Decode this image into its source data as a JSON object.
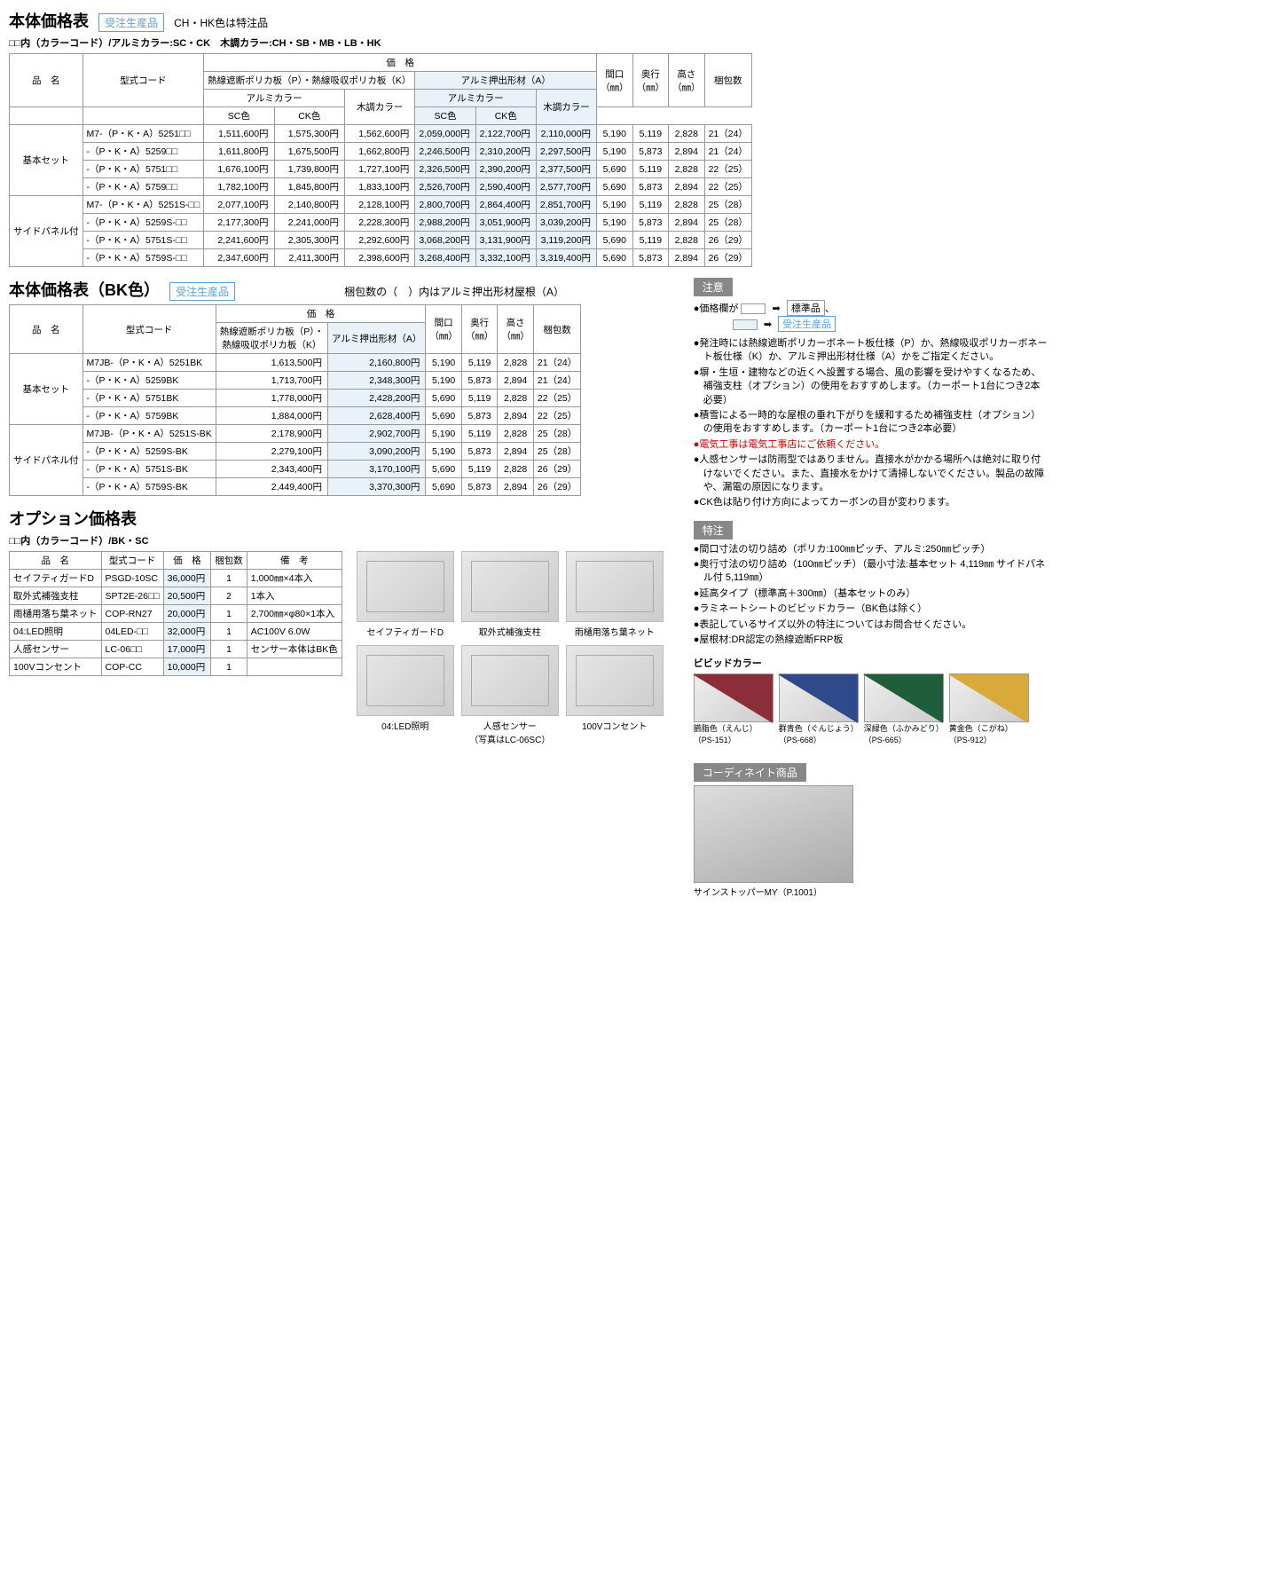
{
  "titles": {
    "main": "本体価格表",
    "badge": "受注生産品",
    "chhk": "CH・HK色は特注品",
    "colorcode": "□□内（カラーコード）/アルミカラー:SC・CK　木調カラー:CH・SB・MB・LB・HK",
    "bk": "本体価格表（BK色）",
    "bk_note": "梱包数の（　）内はアルミ押出形材屋根（A）",
    "option": "オプション価格表",
    "option_color": "□□内（カラーコード）/BK・SC"
  },
  "headers": {
    "name": "品　名",
    "model": "型式コード",
    "price": "価　格",
    "polyca": "熱線遮断ポリカ板（P）・熱線吸収ポリカ板（K）",
    "alumi_ext": "アルミ押出形材（A）",
    "alumi_color": "アルミカラー",
    "wood_color": "木調カラー",
    "sc": "SC色",
    "ck": "CK色",
    "width": "間口\n（㎜）",
    "depth": "奥行\n（㎜）",
    "height": "高さ\n（㎜）",
    "pack": "梱包数",
    "polyca_pk": "熱線遮断ポリカ板（P）・\n熱線吸収ポリカ板（K）",
    "qty": "梱包数",
    "remark": "備　考"
  },
  "groups": {
    "basic": "基本セット",
    "side": "サイドパネル付"
  },
  "mainRows": [
    {
      "g": "basic",
      "model": "M7-（P・K・A）5251□□",
      "p": [
        "1,511,600円",
        "1,575,300円",
        "1,562,600円",
        "2,059,000円",
        "2,122,700円",
        "2,110,000円"
      ],
      "d": [
        "5,190",
        "5,119",
        "2,828",
        "21（24）"
      ]
    },
    {
      "g": "basic",
      "model": "-（P・K・A）5259□□",
      "p": [
        "1,611,800円",
        "1,675,500円",
        "1,662,800円",
        "2,246,500円",
        "2,310,200円",
        "2,297,500円"
      ],
      "d": [
        "5,190",
        "5,873",
        "2,894",
        "21（24）"
      ]
    },
    {
      "g": "basic",
      "model": "-（P・K・A）5751□□",
      "p": [
        "1,676,100円",
        "1,739,800円",
        "1,727,100円",
        "2,326,500円",
        "2,390,200円",
        "2,377,500円"
      ],
      "d": [
        "5,690",
        "5,119",
        "2,828",
        "22（25）"
      ]
    },
    {
      "g": "basic",
      "model": "-（P・K・A）5759□□",
      "p": [
        "1,782,100円",
        "1,845,800円",
        "1,833,100円",
        "2,526,700円",
        "2,590,400円",
        "2,577,700円"
      ],
      "d": [
        "5,690",
        "5,873",
        "2,894",
        "22（25）"
      ]
    },
    {
      "g": "side",
      "model": "M7-（P・K・A）5251S-□□",
      "p": [
        "2,077,100円",
        "2,140,800円",
        "2,128,100円",
        "2,800,700円",
        "2,864,400円",
        "2,851,700円"
      ],
      "d": [
        "5,190",
        "5,119",
        "2,828",
        "25（28）"
      ]
    },
    {
      "g": "side",
      "model": "-（P・K・A）5259S-□□",
      "p": [
        "2,177,300円",
        "2,241,000円",
        "2,228,300円",
        "2,988,200円",
        "3,051,900円",
        "3,039,200円"
      ],
      "d": [
        "5,190",
        "5,873",
        "2,894",
        "25（28）"
      ]
    },
    {
      "g": "side",
      "model": "-（P・K・A）5751S-□□",
      "p": [
        "2,241,600円",
        "2,305,300円",
        "2,292,600円",
        "3,068,200円",
        "3,131,900円",
        "3,119,200円"
      ],
      "d": [
        "5,690",
        "5,119",
        "2,828",
        "26（29）"
      ]
    },
    {
      "g": "side",
      "model": "-（P・K・A）5759S-□□",
      "p": [
        "2,347,600円",
        "2,411,300円",
        "2,398,600円",
        "3,268,400円",
        "3,332,100円",
        "3,319,400円"
      ],
      "d": [
        "5,690",
        "5,873",
        "2,894",
        "26（29）"
      ]
    }
  ],
  "bkRows": [
    {
      "g": "basic",
      "model": "M7JB-（P・K・A）5251BK",
      "p": [
        "1,613,500円",
        "2,160,800円"
      ],
      "d": [
        "5,190",
        "5,119",
        "2,828",
        "21（24）"
      ]
    },
    {
      "g": "basic",
      "model": "-（P・K・A）5259BK",
      "p": [
        "1,713,700円",
        "2,348,300円"
      ],
      "d": [
        "5,190",
        "5,873",
        "2,894",
        "21（24）"
      ]
    },
    {
      "g": "basic",
      "model": "-（P・K・A）5751BK",
      "p": [
        "1,778,000円",
        "2,428,200円"
      ],
      "d": [
        "5,690",
        "5,119",
        "2,828",
        "22（25）"
      ]
    },
    {
      "g": "basic",
      "model": "-（P・K・A）5759BK",
      "p": [
        "1,884,000円",
        "2,628,400円"
      ],
      "d": [
        "5,690",
        "5,873",
        "2,894",
        "22（25）"
      ]
    },
    {
      "g": "side",
      "model": "M7JB-（P・K・A）5251S-BK",
      "p": [
        "2,178,900円",
        "2,902,700円"
      ],
      "d": [
        "5,190",
        "5,119",
        "2,828",
        "25（28）"
      ]
    },
    {
      "g": "side",
      "model": "-（P・K・A）5259S-BK",
      "p": [
        "2,279,100円",
        "3,090,200円"
      ],
      "d": [
        "5,190",
        "5,873",
        "2,894",
        "25（28）"
      ]
    },
    {
      "g": "side",
      "model": "-（P・K・A）5751S-BK",
      "p": [
        "2,343,400円",
        "3,170,100円"
      ],
      "d": [
        "5,690",
        "5,119",
        "2,828",
        "26（29）"
      ]
    },
    {
      "g": "side",
      "model": "-（P・K・A）5759S-BK",
      "p": [
        "2,449,400円",
        "3,370,300円"
      ],
      "d": [
        "5,690",
        "5,873",
        "2,894",
        "26（29）"
      ]
    }
  ],
  "optRows": [
    {
      "name": "セイフティガードD",
      "model": "PSGD-10SC",
      "price": "36,000円",
      "qty": "1",
      "rem": "1,000㎜×4本入"
    },
    {
      "name": "取外式補強支柱",
      "model": "SPT2E-26□□",
      "price": "20,500円",
      "qty": "2",
      "rem": "1本入"
    },
    {
      "name": "雨樋用落ち葉ネット",
      "model": "COP-RN27",
      "price": "20,000円",
      "qty": "1",
      "rem": "2,700㎜×φ80×1本入"
    },
    {
      "name": "04:LED照明",
      "model": "04LED-□□",
      "price": "32,000円",
      "qty": "1",
      "rem": "AC100V 6.0W"
    },
    {
      "name": "人感センサー",
      "model": "LC-06□□",
      "price": "17,000円",
      "qty": "1",
      "rem": "センサー本体はBK色"
    },
    {
      "name": "100Vコンセント",
      "model": "COP-CC",
      "price": "10,000円",
      "qty": "1",
      "rem": ""
    }
  ],
  "thumbs": [
    {
      "label": "セイフティガードD"
    },
    {
      "label": "取外式補強支柱"
    },
    {
      "label": "雨樋用落ち葉ネット"
    },
    {
      "label": "04:LED照明"
    },
    {
      "label": "人感センサー\n（写真はLC-06SC）"
    },
    {
      "label": "100Vコンセント"
    }
  ],
  "caution": {
    "header": "注意",
    "legend_std": "標準品",
    "legend_mto": "受注生産品",
    "legend_pre": "価格欄が",
    "items": [
      "発注時には熱線遮断ポリカーボネート板仕様（P）か、熱線吸収ポリカーボネート板仕様（K）か、アルミ押出形材仕様（A）かをご指定ください。",
      "塀・生垣・建物などの近くへ設置する場合、風の影響を受けやすくなるため、補強支柱（オプション）の使用をおすすめします。（カーポート1台につき2本必要）",
      "積雪による一時的な屋根の垂れ下がりを緩和するため補強支柱（オプション）の使用をおすすめします。（カーポート1台につき2本必要）",
      "人感センサーは防雨型ではありません。直接水がかかる場所へは絶対に取り付けないでください。また、直接水をかけて清掃しないでください。製品の故障や、漏電の原因になります。",
      "CK色は貼り付け方向によってカーボンの目が変わります。"
    ],
    "red": "電気工事は電気工事店にご依頼ください。"
  },
  "special": {
    "header": "特注",
    "items": [
      "間口寸法の切り詰め（ポリカ:100㎜ピッチ、アルミ:250㎜ピッチ）",
      "奥行寸法の切り詰め（100㎜ピッチ）（最小寸法:基本セット 4,119㎜ サイドパネル付 5,119㎜）",
      "延高タイプ（標準高＋300㎜）（基本セットのみ）",
      "ラミネートシートのビビッドカラー（BK色は除く）",
      "表記しているサイズ以外の特注についてはお問合せください。",
      "屋根材:DR認定の熱線遮断FRP板"
    ]
  },
  "vivid": {
    "header": "ビビッドカラー",
    "colors": [
      {
        "name": "臙脂色（えんじ）\n（PS-151）",
        "hex": "#8b2e3a"
      },
      {
        "name": "群青色（ぐんじょう）\n（PS-668）",
        "hex": "#2e4a8b"
      },
      {
        "name": "深緑色（ふかみどり）\n（PS-665）",
        "hex": "#1e5e3a"
      },
      {
        "name": "黄金色（こがね）\n（PS-912）",
        "hex": "#d9a93a"
      }
    ]
  },
  "coord": {
    "header": "コーディネイト商品",
    "label": "サインストッパーMY（P.1001）"
  }
}
